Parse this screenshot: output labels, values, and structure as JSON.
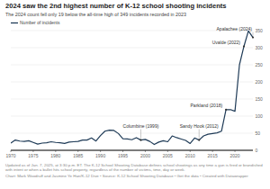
{
  "chart_data": {
    "type": "line",
    "title": "2024 saw the 2nd highest number of K-12 school shooting incidents",
    "subtitle": "The 2024 count fell only 19 below the all-time high of 349 incidents recorded in 2023",
    "x": [
      1970,
      1971,
      1972,
      1973,
      1974,
      1975,
      1976,
      1977,
      1978,
      1979,
      1980,
      1981,
      1982,
      1983,
      1984,
      1985,
      1986,
      1987,
      1988,
      1989,
      1990,
      1991,
      1992,
      1993,
      1994,
      1995,
      1996,
      1997,
      1998,
      1999,
      2000,
      2001,
      2002,
      2003,
      2004,
      2005,
      2006,
      2007,
      2008,
      2009,
      2010,
      2011,
      2012,
      2013,
      2014,
      2015,
      2016,
      2017,
      2018,
      2019,
      2020,
      2021,
      2022,
      2023,
      2024
    ],
    "series": [
      {
        "name": "Number of incidents",
        "color": "#1f3b57",
        "values": [
          21,
          30,
          27,
          26,
          28,
          23,
          18,
          21,
          22,
          25,
          23,
          22,
          20,
          24,
          25,
          26,
          30,
          30,
          36,
          27,
          43,
          56,
          59,
          58,
          49,
          34,
          33,
          31,
          37,
          30,
          32,
          26,
          17,
          24,
          28,
          25,
          42,
          37,
          33,
          29,
          20,
          36,
          30,
          42,
          47,
          49,
          51,
          56,
          119,
          119,
          114,
          250,
          304,
          349,
          330
        ]
      }
    ],
    "xlim": [
      1970,
      2024
    ],
    "xticks": [
      1970,
      1975,
      1980,
      1985,
      1990,
      1995,
      2000,
      2005,
      2010,
      2015,
      2020
    ],
    "ylim": [
      0,
      350
    ],
    "yticks": [
      0,
      50,
      100,
      150,
      200,
      250,
      300,
      350
    ],
    "grid": true,
    "legend": "top-left",
    "annotations": [
      {
        "text": "Columbine (1999)",
        "x": 1999
      },
      {
        "text": "Sandy Hook (2012)",
        "x": 2012
      },
      {
        "text": "Parkland (2018)",
        "x": 2018
      },
      {
        "text": "Uvalde (2022)",
        "x": 2022
      },
      {
        "text": "Apalachee (2024)",
        "x": 2024
      }
    ],
    "note": "Updated as of Jan. 7, 2025, at 3:30 p.m. ET. The K-12 School Shooting Database defines school shootings as any time a gun is fired or brandished with intent or when a bullet hits school property, regardless of the number of victims, time, day or week.",
    "credit": "Chart: Mark Woodruff and Jasmine Ye Han/K-12 Dive • Source: K-12 School Shooting Database • Get the data • Created with Datawrapper"
  }
}
